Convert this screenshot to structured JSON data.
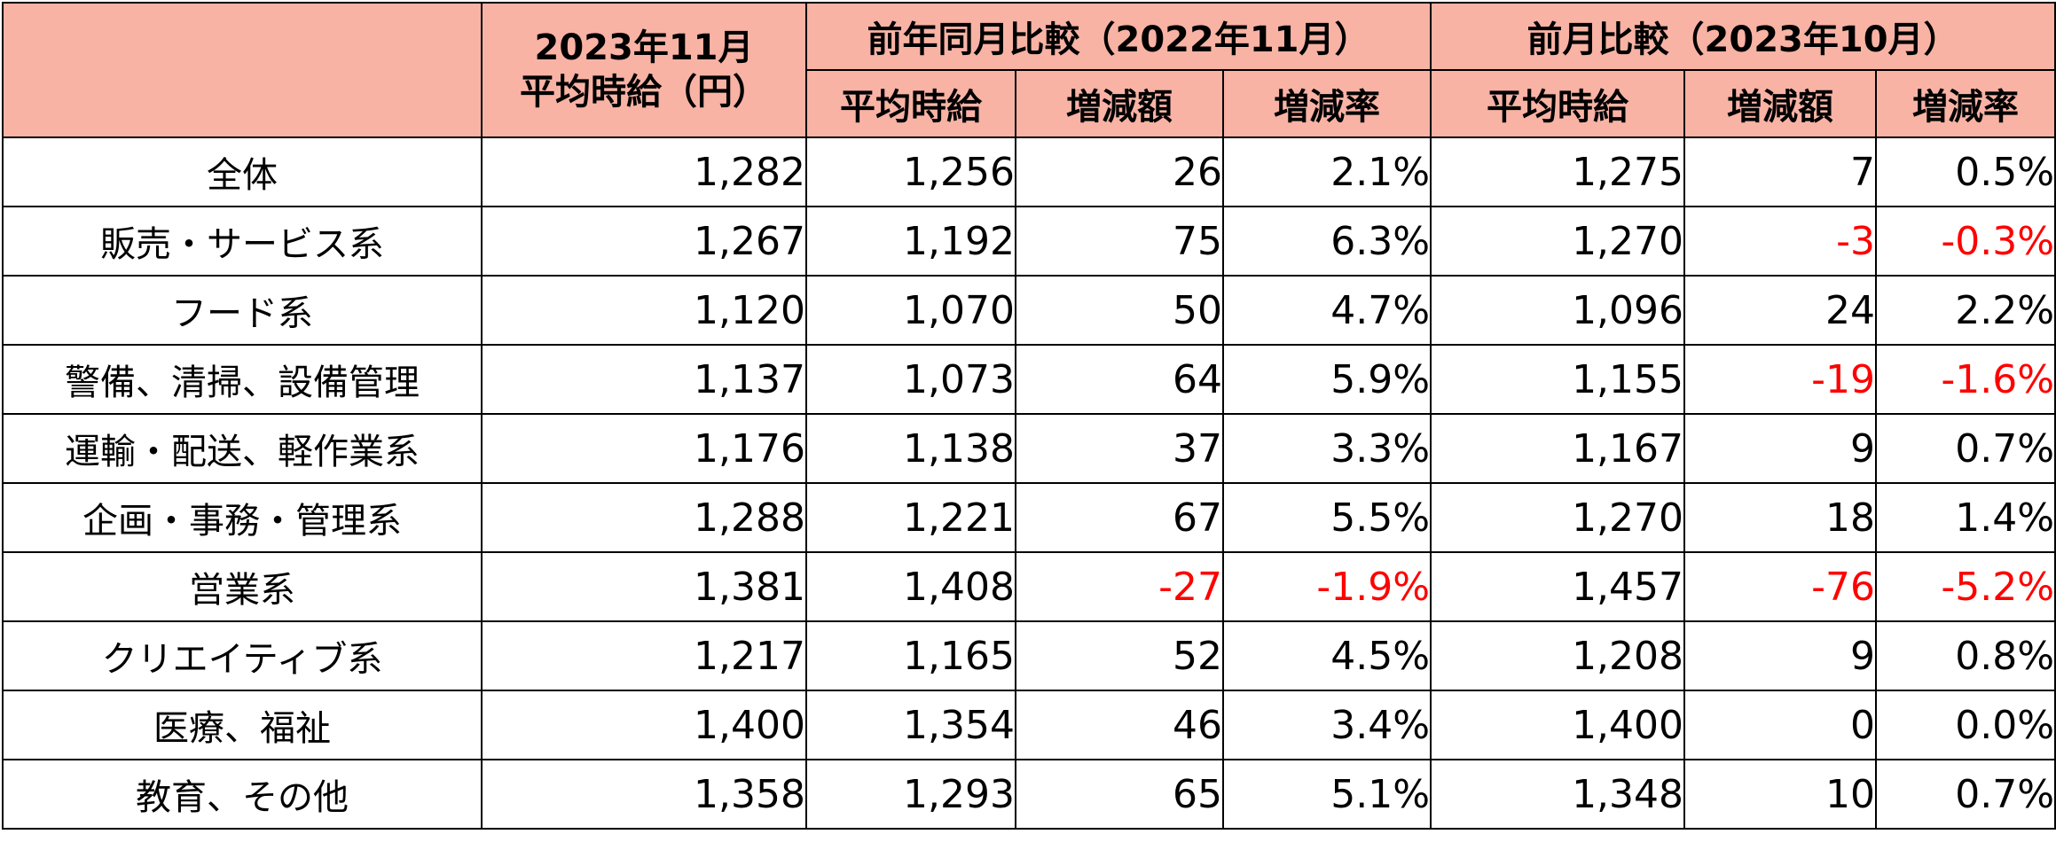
{
  "header": {
    "current_month": "2023年11月",
    "current_avg_label": "平均時給（円）",
    "yoy_group": "前年同月比較（2022年11月）",
    "mom_group": "前月比較（2023年10月）",
    "sub_avg": "平均時給",
    "sub_diff": "増減額",
    "sub_rate": "増減率"
  },
  "negative_color": "#ff0000",
  "header_bg": "#f8b3a5",
  "rows": [
    {
      "category": "全体",
      "current": "1,282",
      "yoy_avg": "1,256",
      "yoy_diff": "26",
      "yoy_rate": "2.1%",
      "mom_avg": "1,275",
      "mom_diff": "7",
      "mom_rate": "0.5%"
    },
    {
      "category": "販売・サービス系",
      "current": "1,267",
      "yoy_avg": "1,192",
      "yoy_diff": "75",
      "yoy_rate": "6.3%",
      "mom_avg": "1,270",
      "mom_diff": "-3",
      "mom_rate": "-0.3%"
    },
    {
      "category": "フード系",
      "current": "1,120",
      "yoy_avg": "1,070",
      "yoy_diff": "50",
      "yoy_rate": "4.7%",
      "mom_avg": "1,096",
      "mom_diff": "24",
      "mom_rate": "2.2%"
    },
    {
      "category": "警備、清掃、設備管理",
      "current": "1,137",
      "yoy_avg": "1,073",
      "yoy_diff": "64",
      "yoy_rate": "5.9%",
      "mom_avg": "1,155",
      "mom_diff": "-19",
      "mom_rate": "-1.6%"
    },
    {
      "category": "運輸・配送、軽作業系",
      "current": "1,176",
      "yoy_avg": "1,138",
      "yoy_diff": "37",
      "yoy_rate": "3.3%",
      "mom_avg": "1,167",
      "mom_diff": "9",
      "mom_rate": "0.7%"
    },
    {
      "category": "企画・事務・管理系",
      "current": "1,288",
      "yoy_avg": "1,221",
      "yoy_diff": "67",
      "yoy_rate": "5.5%",
      "mom_avg": "1,270",
      "mom_diff": "18",
      "mom_rate": "1.4%"
    },
    {
      "category": "営業系",
      "current": "1,381",
      "yoy_avg": "1,408",
      "yoy_diff": "-27",
      "yoy_rate": "-1.9%",
      "mom_avg": "1,457",
      "mom_diff": "-76",
      "mom_rate": "-5.2%"
    },
    {
      "category": "クリエイティブ系",
      "current": "1,217",
      "yoy_avg": "1,165",
      "yoy_diff": "52",
      "yoy_rate": "4.5%",
      "mom_avg": "1,208",
      "mom_diff": "9",
      "mom_rate": "0.8%"
    },
    {
      "category": "医療、福祉",
      "current": "1,400",
      "yoy_avg": "1,354",
      "yoy_diff": "46",
      "yoy_rate": "3.4%",
      "mom_avg": "1,400",
      "mom_diff": "0",
      "mom_rate": "0.0%"
    },
    {
      "category": "教育、その他",
      "current": "1,358",
      "yoy_avg": "1,293",
      "yoy_diff": "65",
      "yoy_rate": "5.1%",
      "mom_avg": "1,348",
      "mom_diff": "10",
      "mom_rate": "0.7%"
    }
  ]
}
